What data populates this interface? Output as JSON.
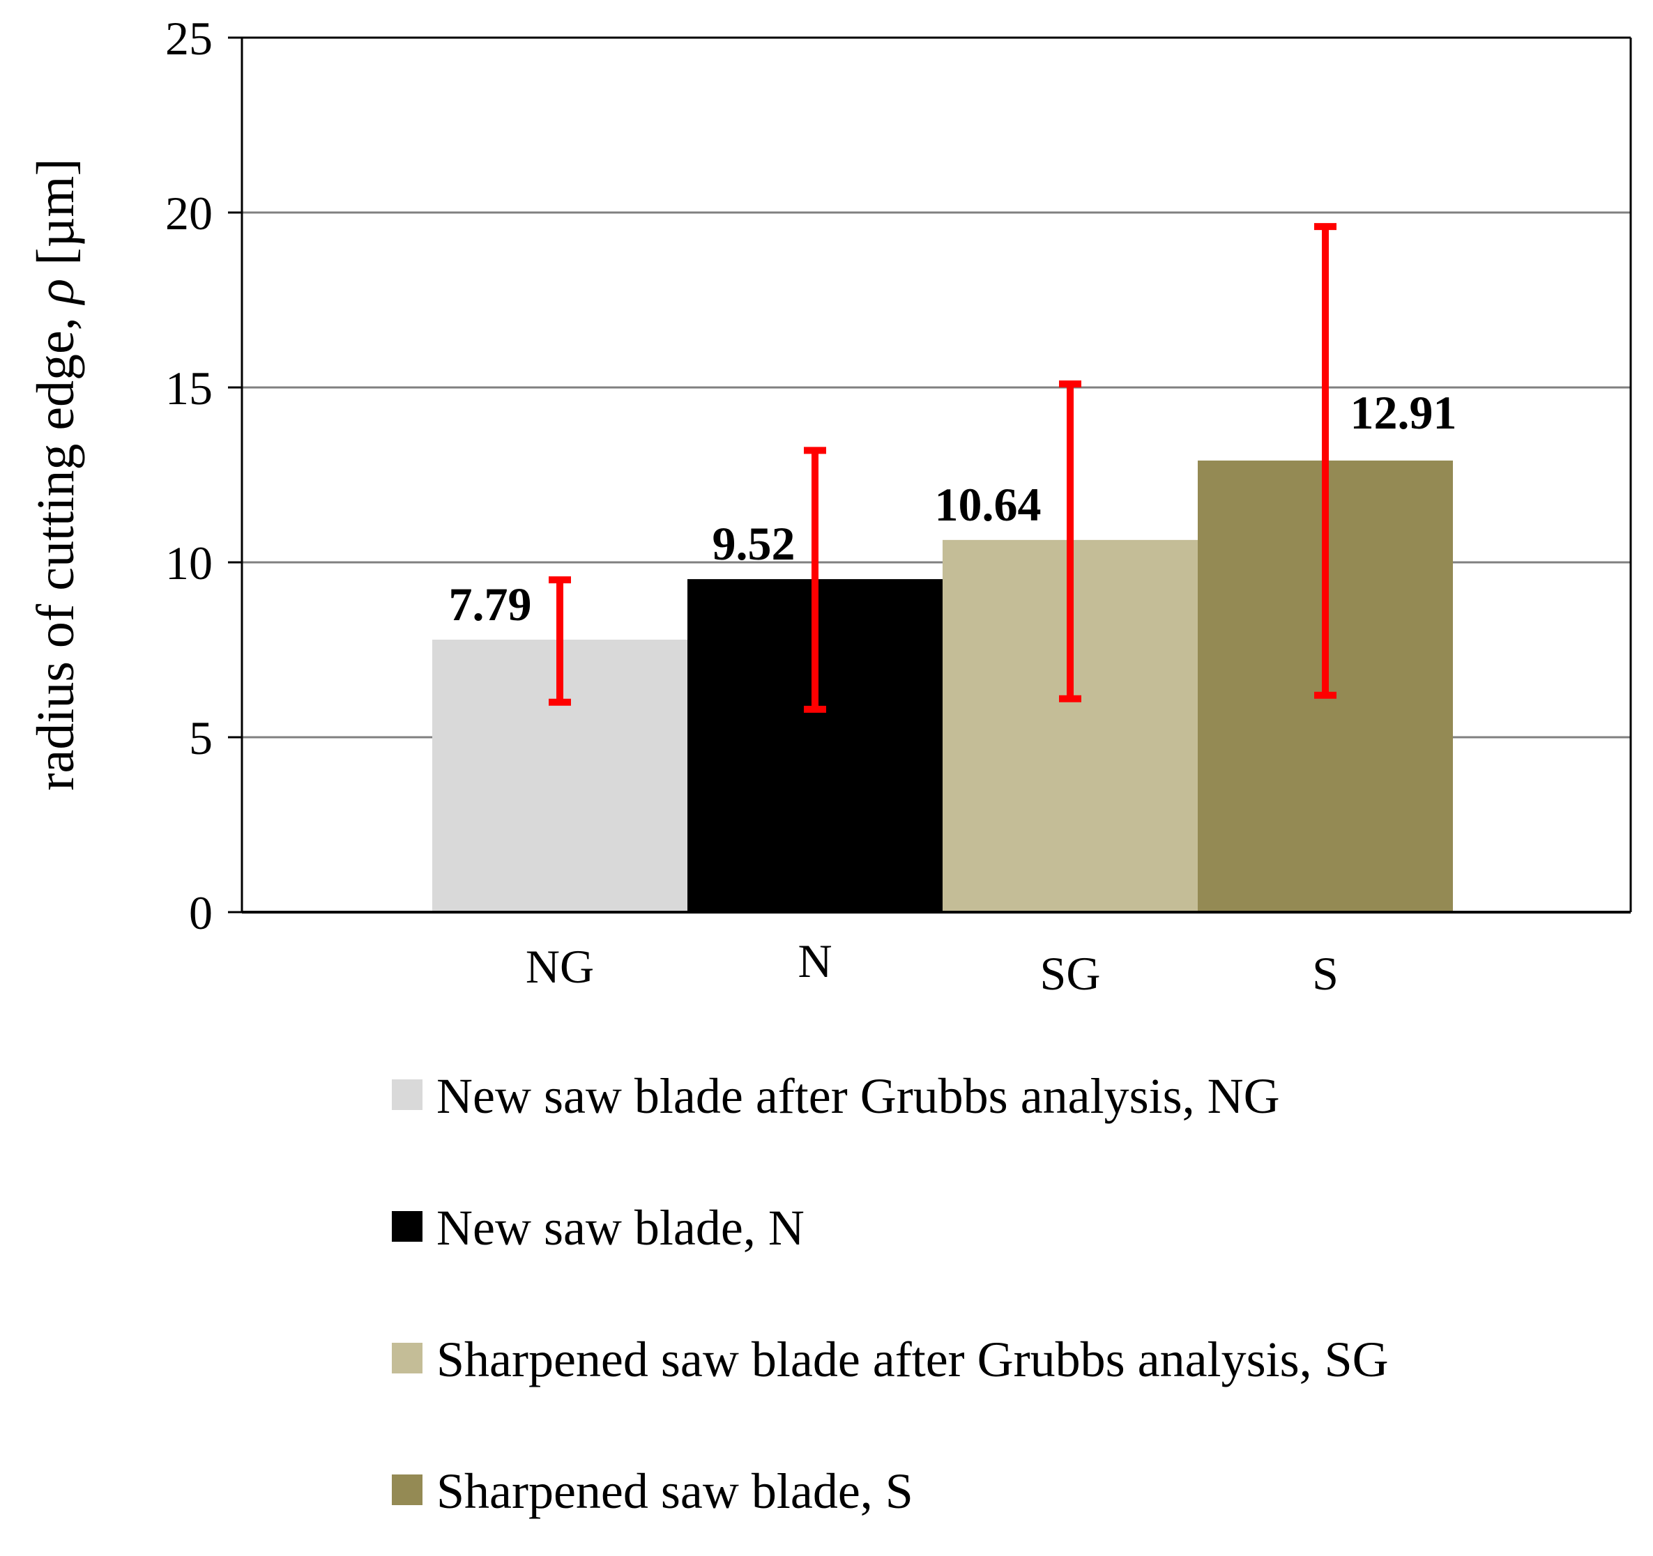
{
  "chart_data": {
    "type": "bar",
    "title": "",
    "xlabel": "",
    "ylabel": {
      "prefix": "radius of cutting edge, ",
      "symbol": "ρ",
      "suffix": " [µm]"
    },
    "ylim": [
      0,
      25
    ],
    "yticks": [
      0,
      5,
      10,
      15,
      20,
      25
    ],
    "grid": true,
    "legend_position": "bottom",
    "categories": [
      "NG",
      "N",
      "SG",
      "S"
    ],
    "series": [
      {
        "name": "New saw blade after Grubbs analysis, NG",
        "category": "NG",
        "value": 7.79,
        "value_label": "7.79",
        "error_low": 6.0,
        "error_high": 9.5,
        "color": "#d9d9d9"
      },
      {
        "name": "New saw blade, N",
        "category": "N",
        "value": 9.52,
        "value_label": "9.52",
        "error_low": 5.8,
        "error_high": 13.2,
        "color": "#000000"
      },
      {
        "name": "Sharpened saw blade after Grubbs analysis, SG",
        "category": "SG",
        "value": 10.64,
        "value_label": "10.64",
        "error_low": 6.1,
        "error_high": 15.1,
        "color": "#c4bd97"
      },
      {
        "name": "Sharpened saw blade, S",
        "category": "S",
        "value": 12.91,
        "value_label": "12.91",
        "error_low": 6.2,
        "error_high": 19.6,
        "color": "#948a54"
      }
    ],
    "error_bar_color": "#ff0000",
    "gridline_color": "#808080"
  }
}
